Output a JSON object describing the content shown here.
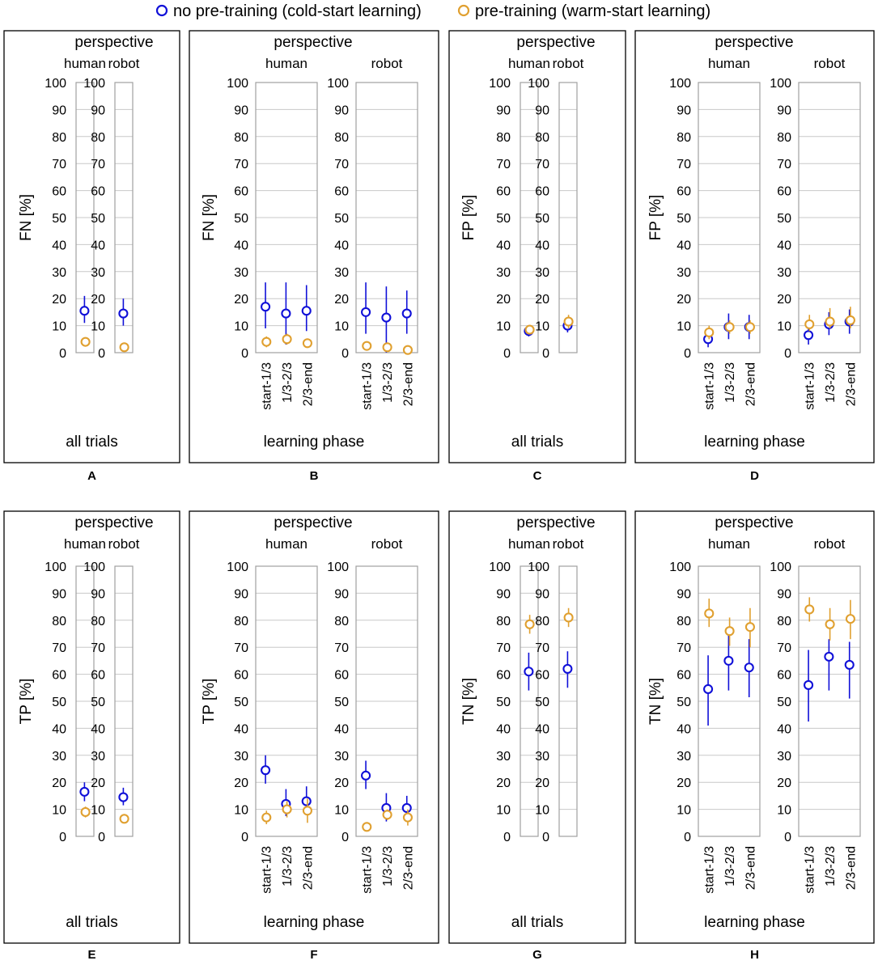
{
  "legend": {
    "cold": "no pre-training (cold-start learning)",
    "warm": "pre-training (warm-start learning)"
  },
  "colors": {
    "cold": "#1010d8",
    "warm": "#e0a030",
    "frame": "#000000",
    "grid": "#c8c8c8",
    "axis_box": "#a0a0a0"
  },
  "common": {
    "perspective": "perspective",
    "human": "human",
    "robot": "robot",
    "all_trials": "all trials",
    "learning_phase": "learning phase",
    "phases": [
      "start-1/3",
      "1/3-2/3",
      "2/3-end"
    ],
    "y_ticks": [
      "0",
      "10",
      "20",
      "30",
      "40",
      "50",
      "60",
      "70",
      "80",
      "90",
      "100"
    ]
  },
  "chart_data": [
    {
      "panel": "A",
      "type": "scatter",
      "ylabel": "FN [%]",
      "xlabel": "all trials",
      "ylim": [
        0,
        100
      ],
      "categories": [
        "all trials"
      ],
      "human": {
        "cold": [
          {
            "y": 15.5,
            "lo": 11,
            "hi": 21
          }
        ],
        "warm": [
          {
            "y": 4,
            "lo": 3,
            "hi": 5
          }
        ]
      },
      "robot": {
        "cold": [
          {
            "y": 14.5,
            "lo": 10,
            "hi": 20
          }
        ],
        "warm": [
          {
            "y": 2,
            "lo": 1,
            "hi": 3
          }
        ]
      }
    },
    {
      "panel": "B",
      "type": "scatter",
      "ylabel": "FN [%]",
      "xlabel": "learning phase",
      "ylim": [
        0,
        100
      ],
      "categories": [
        "start-1/3",
        "1/3-2/3",
        "2/3-end"
      ],
      "human": {
        "cold": [
          {
            "y": 17,
            "lo": 9,
            "hi": 26
          },
          {
            "y": 14.5,
            "lo": 3,
            "hi": 26
          },
          {
            "y": 15.5,
            "lo": 8,
            "hi": 25
          }
        ],
        "warm": [
          {
            "y": 4,
            "lo": 2,
            "hi": 6
          },
          {
            "y": 5,
            "lo": 3,
            "hi": 7
          },
          {
            "y": 3.5,
            "lo": 2,
            "hi": 5
          }
        ]
      },
      "robot": {
        "cold": [
          {
            "y": 15,
            "lo": 7,
            "hi": 26
          },
          {
            "y": 13,
            "lo": 0,
            "hi": 24.5
          },
          {
            "y": 14.5,
            "lo": 7,
            "hi": 23
          }
        ],
        "warm": [
          {
            "y": 2.5,
            "lo": 1,
            "hi": 4
          },
          {
            "y": 2,
            "lo": 1,
            "hi": 3
          },
          {
            "y": 1,
            "lo": 0,
            "hi": 2
          }
        ]
      }
    },
    {
      "panel": "C",
      "type": "scatter",
      "ylabel": "FP [%]",
      "xlabel": "all trials",
      "ylim": [
        0,
        100
      ],
      "categories": [
        "all trials"
      ],
      "human": {
        "cold": [
          {
            "y": 8,
            "lo": 6,
            "hi": 10
          }
        ],
        "warm": [
          {
            "y": 8.5,
            "lo": 7,
            "hi": 10
          }
        ]
      },
      "robot": {
        "cold": [
          {
            "y": 10,
            "lo": 7.5,
            "hi": 12.5
          }
        ],
        "warm": [
          {
            "y": 11.5,
            "lo": 9,
            "hi": 14
          }
        ]
      }
    },
    {
      "panel": "D",
      "type": "scatter",
      "ylabel": "FP [%]",
      "xlabel": "learning phase",
      "ylim": [
        0,
        100
      ],
      "categories": [
        "start-1/3",
        "1/3-2/3",
        "2/3-end"
      ],
      "human": {
        "cold": [
          {
            "y": 5,
            "lo": 2,
            "hi": 8
          },
          {
            "y": 9.5,
            "lo": 5,
            "hi": 14.5
          },
          {
            "y": 9.5,
            "lo": 5,
            "hi": 14
          }
        ],
        "warm": [
          {
            "y": 7.5,
            "lo": 5,
            "hi": 10
          },
          {
            "y": 9.5,
            "lo": 7,
            "hi": 12
          },
          {
            "y": 9.5,
            "lo": 7,
            "hi": 12
          }
        ]
      },
      "robot": {
        "cold": [
          {
            "y": 6.5,
            "lo": 3,
            "hi": 10
          },
          {
            "y": 10.5,
            "lo": 6.5,
            "hi": 15
          },
          {
            "y": 11.5,
            "lo": 7,
            "hi": 16
          }
        ],
        "warm": [
          {
            "y": 10.5,
            "lo": 8,
            "hi": 14
          },
          {
            "y": 11.5,
            "lo": 9,
            "hi": 16.5
          },
          {
            "y": 12,
            "lo": 9,
            "hi": 17
          }
        ]
      }
    },
    {
      "panel": "E",
      "type": "scatter",
      "ylabel": "TP [%]",
      "xlabel": "all trials",
      "ylim": [
        0,
        100
      ],
      "categories": [
        "all trials"
      ],
      "human": {
        "cold": [
          {
            "y": 16.5,
            "lo": 13,
            "hi": 20
          }
        ],
        "warm": [
          {
            "y": 9,
            "lo": 7,
            "hi": 11
          }
        ]
      },
      "robot": {
        "cold": [
          {
            "y": 14.5,
            "lo": 11.5,
            "hi": 18
          }
        ],
        "warm": [
          {
            "y": 6.5,
            "lo": 5,
            "hi": 8
          }
        ]
      }
    },
    {
      "panel": "F",
      "type": "scatter",
      "ylabel": "TP [%]",
      "xlabel": "learning phase",
      "ylim": [
        0,
        100
      ],
      "categories": [
        "start-1/3",
        "1/3-2/3",
        "2/3-end"
      ],
      "human": {
        "cold": [
          {
            "y": 24.5,
            "lo": 19.5,
            "hi": 30
          },
          {
            "y": 12,
            "lo": 7.5,
            "hi": 17.5
          },
          {
            "y": 13,
            "lo": 8,
            "hi": 18.5
          }
        ],
        "warm": [
          {
            "y": 7,
            "lo": 4.5,
            "hi": 9.5
          },
          {
            "y": 10,
            "lo": 7,
            "hi": 13
          },
          {
            "y": 9.5,
            "lo": 5,
            "hi": 14
          }
        ]
      },
      "robot": {
        "cold": [
          {
            "y": 22.5,
            "lo": 17.5,
            "hi": 28
          },
          {
            "y": 10.5,
            "lo": 5.5,
            "hi": 16
          },
          {
            "y": 10.5,
            "lo": 6,
            "hi": 15
          }
        ],
        "warm": [
          {
            "y": 3.5,
            "lo": 2.5,
            "hi": 4.5
          },
          {
            "y": 8,
            "lo": 6,
            "hi": 10
          },
          {
            "y": 7,
            "lo": 4,
            "hi": 10
          }
        ]
      }
    },
    {
      "panel": "G",
      "type": "scatter",
      "ylabel": "TN [%]",
      "xlabel": "all trials",
      "ylim": [
        0,
        100
      ],
      "categories": [
        "all trials"
      ],
      "human": {
        "cold": [
          {
            "y": 61,
            "lo": 54,
            "hi": 68
          }
        ],
        "warm": [
          {
            "y": 78.5,
            "lo": 75,
            "hi": 82
          }
        ]
      },
      "robot": {
        "cold": [
          {
            "y": 62,
            "lo": 55,
            "hi": 68.5
          }
        ],
        "warm": [
          {
            "y": 81,
            "lo": 77.5,
            "hi": 84.5
          }
        ]
      }
    },
    {
      "panel": "H",
      "type": "scatter",
      "ylabel": "TN [%]",
      "xlabel": "learning phase",
      "ylim": [
        0,
        100
      ],
      "categories": [
        "start-1/3",
        "1/3-2/3",
        "2/3-end"
      ],
      "human": {
        "cold": [
          {
            "y": 54.5,
            "lo": 41,
            "hi": 67
          },
          {
            "y": 65,
            "lo": 54,
            "hi": 76
          },
          {
            "y": 62.5,
            "lo": 51.5,
            "hi": 73
          }
        ],
        "warm": [
          {
            "y": 82.5,
            "lo": 77.5,
            "hi": 88
          },
          {
            "y": 76,
            "lo": 70.5,
            "hi": 81
          },
          {
            "y": 77.5,
            "lo": 70,
            "hi": 84.5
          }
        ]
      },
      "robot": {
        "cold": [
          {
            "y": 56,
            "lo": 42.5,
            "hi": 69
          },
          {
            "y": 66.5,
            "lo": 54,
            "hi": 73
          },
          {
            "y": 63.5,
            "lo": 51,
            "hi": 72
          }
        ],
        "warm": [
          {
            "y": 84,
            "lo": 79.5,
            "hi": 88.5
          },
          {
            "y": 78.5,
            "lo": 72.5,
            "hi": 84.5
          },
          {
            "y": 80.5,
            "lo": 73,
            "hi": 87.5
          }
        ]
      }
    }
  ]
}
